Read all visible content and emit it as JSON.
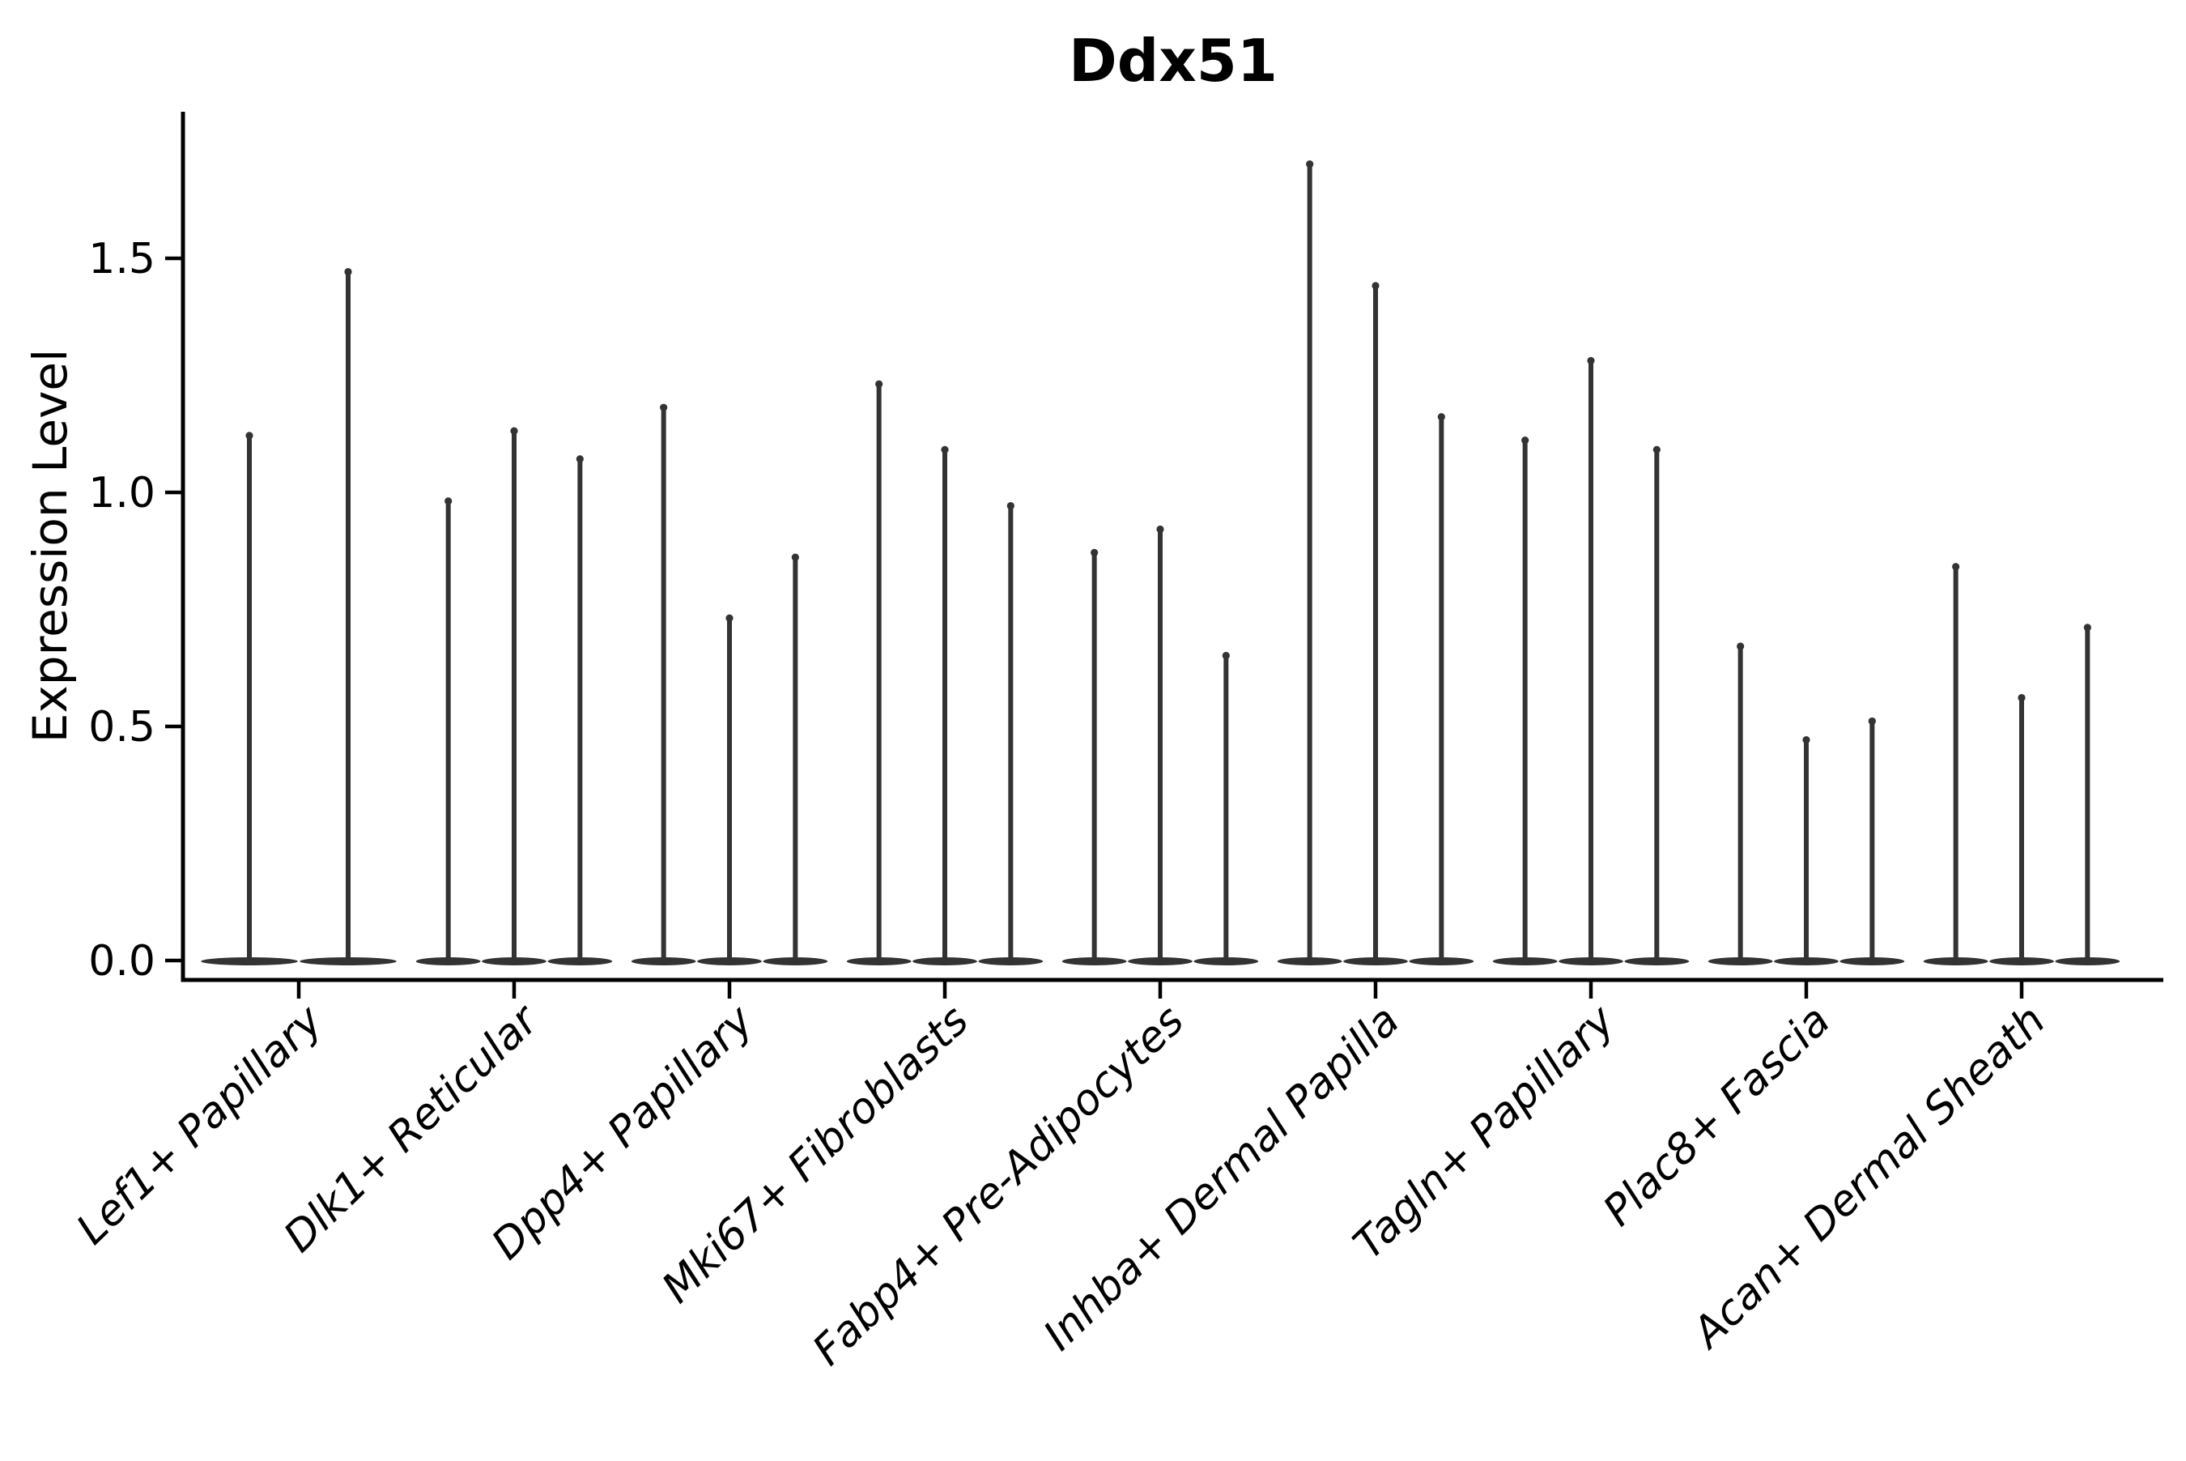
{
  "figure": {
    "title": "Ddx51"
  },
  "chart_data": {
    "type": "violin",
    "title": "Ddx51",
    "xlabel": "",
    "ylabel": "Expression Level",
    "ylim": [
      -0.04,
      1.81
    ],
    "yticks": [
      0.0,
      0.5,
      1.0,
      1.5
    ],
    "ytick_labels": [
      "0.0",
      "0.5",
      "1.0",
      "1.5"
    ],
    "grid": false,
    "legend": "none",
    "x_label_rotation_deg": 44,
    "x_labels_italic": true,
    "spines": [
      "left",
      "bottom"
    ],
    "categories": [
      "Lef1+ Papillary",
      "Dlk1+ Reticular",
      "Dpp4+ Papillary",
      "Mki67+ Fibroblasts",
      "Fabp4+ Pre-Adipocytes",
      "Inhba+ Dermal Papilla",
      "Tagln+ Papillary",
      "Plac8+ Fascia",
      "Acan+ Dermal Sheath"
    ],
    "violin_max_by_category": [
      [
        1.13,
        1.48
      ],
      [
        0.99,
        1.14,
        1.08
      ],
      [
        1.19,
        0.74,
        0.87
      ],
      [
        1.24,
        1.1,
        0.98
      ],
      [
        0.88,
        0.93,
        0.66
      ],
      [
        1.71,
        1.45,
        1.17
      ],
      [
        1.12,
        1.29,
        1.1
      ],
      [
        0.68,
        0.48,
        0.52
      ],
      [
        0.85,
        0.57,
        0.72
      ]
    ],
    "violin_baseline_value": 0.0,
    "colors": {
      "violin": "#333333",
      "axis": "#000000",
      "text": "#000000",
      "background": "#ffffff"
    }
  }
}
